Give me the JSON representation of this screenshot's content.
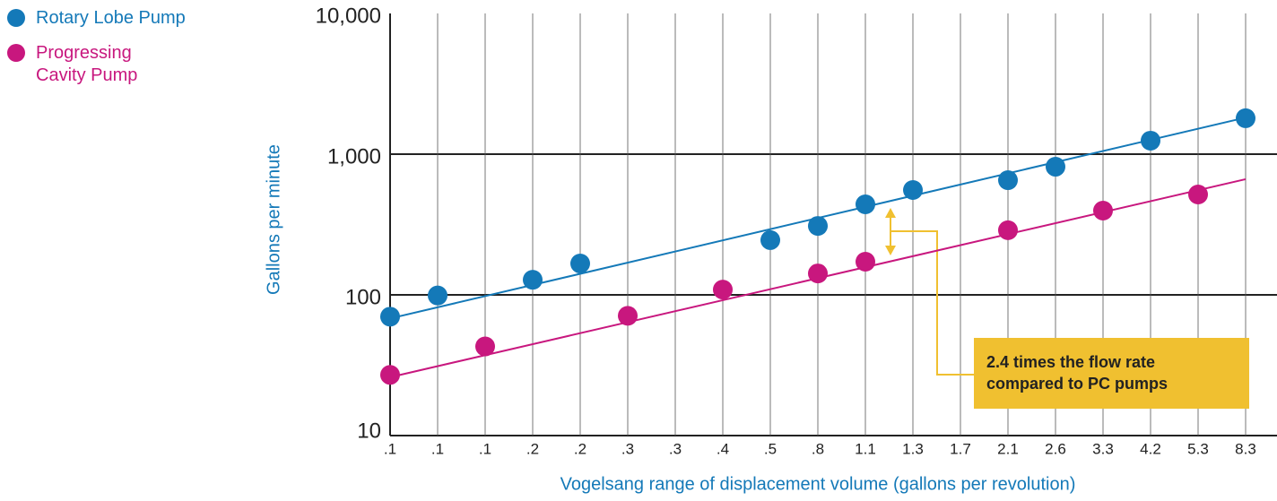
{
  "chart_data": {
    "type": "scatter",
    "x_label": "Vogelsang range of displacement volume  (gallons per revolution)",
    "y_label": "Gallons per minute",
    "categories": [
      ".1",
      ".1",
      ".1",
      ".2",
      ".2",
      ".3",
      ".3",
      ".4",
      ".5",
      ".8",
      "1.1",
      "1.3",
      "1.7",
      "2.1",
      "2.6",
      "3.3",
      "4.2",
      "5.3",
      "8.3"
    ],
    "log_y": true,
    "ylim": [
      10,
      10000
    ],
    "yticks": [
      {
        "value": 10000,
        "label": "10,000"
      },
      {
        "value": 1000,
        "label": "1,000"
      },
      100,
      10
    ],
    "grid": true,
    "legend": "left",
    "series": [
      {
        "name": "Rotary Lobe Pump",
        "color": "#1479b8",
        "values": [
          70,
          99,
          null,
          128,
          167,
          null,
          null,
          null,
          245,
          309,
          440,
          556,
          null,
          653,
          814,
          null,
          1247,
          null,
          1800
        ],
        "trend": [
          68,
          1820
        ]
      },
      {
        "name": "Progressing Cavity Pump",
        "color": "#c8177e",
        "values": [
          27,
          null,
          43,
          null,
          null,
          71,
          null,
          109,
          null,
          142,
          172,
          null,
          null,
          288,
          null,
          397,
          null,
          517,
          null
        ],
        "trend": [
          26,
          664
        ]
      }
    ],
    "annotation": [
      "2.4 times the flow rate",
      "compared to PC pumps"
    ]
  }
}
